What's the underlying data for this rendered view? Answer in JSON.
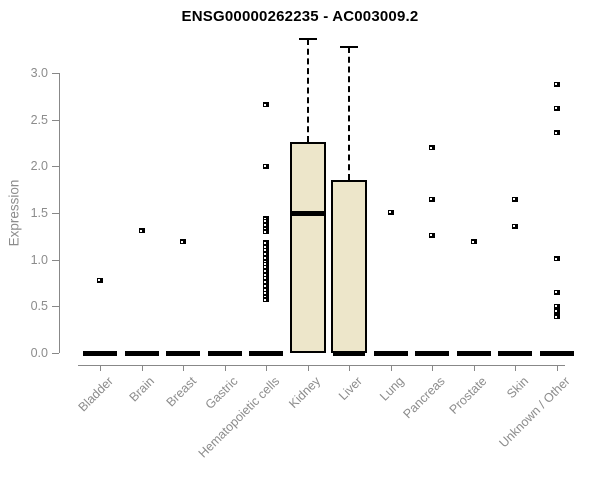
{
  "chart_data": {
    "type": "boxplot",
    "title": "ENSG00000262235 - AC003009.2",
    "xlabel": "",
    "ylabel": "Expression",
    "ylim": [
      0.0,
      3.0
    ],
    "yticks": [
      "0.0",
      "0.5",
      "1.0",
      "1.5",
      "2.0",
      "2.5",
      "3.0"
    ],
    "ytick_values": [
      0.0,
      0.5,
      1.0,
      1.5,
      2.0,
      2.5,
      3.0
    ],
    "grid": false,
    "legend": "none",
    "categories": [
      "Bladder",
      "Brain",
      "Breast",
      "Gastric",
      "Hematopoietic cells",
      "Kidney",
      "Liver",
      "Lung",
      "Pancreas",
      "Prostate",
      "Skin",
      "Unknown / Other"
    ],
    "groups": [
      {
        "category": "Bladder",
        "median": 0.0,
        "points": [
          0.78
        ]
      },
      {
        "category": "Brain",
        "median": 0.0,
        "points": [
          1.31
        ]
      },
      {
        "category": "Breast",
        "median": 0.0,
        "points": [
          1.19
        ]
      },
      {
        "category": "Gastric",
        "median": 0.0,
        "points": []
      },
      {
        "category": "Hematopoietic cells",
        "median": 0.0,
        "points": [
          2.66,
          2.0,
          1.44,
          1.41,
          1.37,
          1.33,
          1.3,
          1.18,
          1.14,
          1.1,
          1.06,
          1.02,
          0.98,
          0.95,
          0.92,
          0.88,
          0.84,
          0.8,
          0.76,
          0.72,
          0.68,
          0.64,
          0.6,
          0.57
        ]
      },
      {
        "category": "Kidney",
        "box": {
          "q1": 0.0,
          "median": 1.49,
          "q3": 2.26,
          "whisker_low": 0.0,
          "whisker_high": 3.36
        },
        "points": []
      },
      {
        "category": "Liver",
        "box": {
          "q1": 0.0,
          "median": 0.0,
          "q3": 1.85,
          "whisker_low": 0.0,
          "whisker_high": 3.28
        },
        "points": []
      },
      {
        "category": "Lung",
        "median": 0.0,
        "points": [
          1.51
        ]
      },
      {
        "category": "Pancreas",
        "median": 0.0,
        "points": [
          2.2,
          1.65,
          1.26
        ]
      },
      {
        "category": "Prostate",
        "median": 0.0,
        "points": [
          1.19
        ]
      },
      {
        "category": "Skin",
        "median": 0.0,
        "points": [
          1.65,
          1.36
        ]
      },
      {
        "category": "Unknown / Other",
        "median": 0.0,
        "points": [
          2.88,
          2.62,
          2.36,
          1.01,
          0.65,
          0.5,
          0.45,
          0.39
        ]
      }
    ],
    "colors": {
      "box_fill": "#EDE6CA",
      "box_border": "#000000",
      "median": "#000000",
      "point": "#000000",
      "axis": "#888888",
      "tick_label": "#8c8c8c",
      "title": "#000000",
      "background": "#ffffff"
    }
  }
}
